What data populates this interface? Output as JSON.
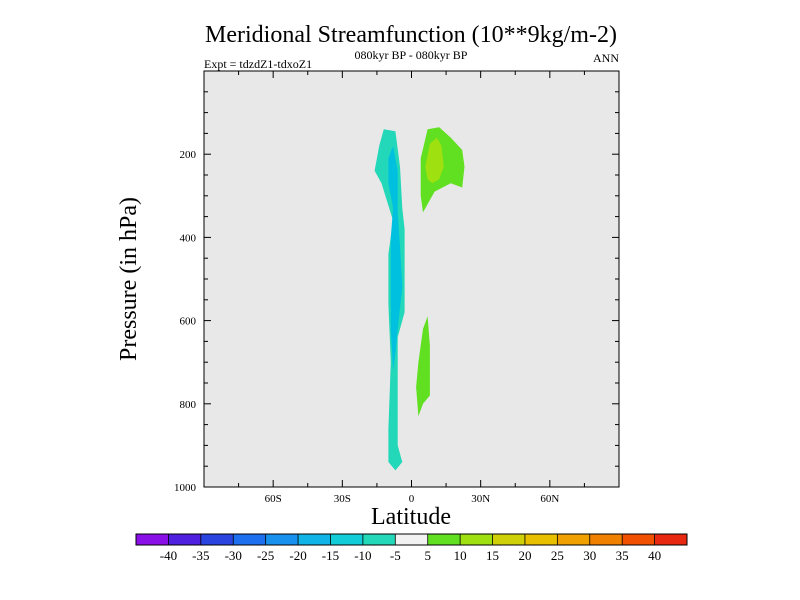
{
  "chart_data": {
    "type": "contour",
    "title": "Meridional Streamfunction (10**9kg/m-2)",
    "subtitle_left": "Expt = tdzdZ1-tdxoZ1",
    "subtitle_center": "080kyr BP - 080kyr BP",
    "subtitle_right": "ANN",
    "xlabel": "Latitude",
    "ylabel": "Pressure (in hPa)",
    "xlim": [
      -90,
      90
    ],
    "ylim": [
      1000,
      0
    ],
    "x_ticks": [
      {
        "value": -60,
        "label": "60S"
      },
      {
        "value": -30,
        "label": "30S"
      },
      {
        "value": 0,
        "label": "0"
      },
      {
        "value": 30,
        "label": "30N"
      },
      {
        "value": 60,
        "label": "60N"
      }
    ],
    "y_ticks": [
      {
        "value": 200,
        "label": "200"
      },
      {
        "value": 400,
        "label": "400"
      },
      {
        "value": 600,
        "label": "600"
      },
      {
        "value": 800,
        "label": "800"
      },
      {
        "value": 1000,
        "label": "1000"
      }
    ],
    "background_color": "#e8e8e8",
    "regions": [
      {
        "name": "negative-cell-outer",
        "level": "-10 to -5",
        "color": "#22d8b8",
        "points": [
          [
            -14,
            180
          ],
          [
            -12,
            140
          ],
          [
            -7,
            145
          ],
          [
            -5,
            230
          ],
          [
            -4,
            330
          ],
          [
            -3,
            380
          ],
          [
            -3,
            520
          ],
          [
            -3,
            580
          ],
          [
            -6,
            640
          ],
          [
            -6,
            900
          ],
          [
            -4,
            940
          ],
          [
            -7,
            960
          ],
          [
            -10,
            940
          ],
          [
            -10,
            860
          ],
          [
            -9,
            700
          ],
          [
            -10,
            560
          ],
          [
            -10,
            440
          ],
          [
            -8,
            360
          ],
          [
            -13,
            270
          ],
          [
            -16,
            240
          ]
        ]
      },
      {
        "name": "negative-cell-inner",
        "level": "-15 to -10",
        "color": "#00c0e0",
        "points": [
          [
            -10,
            210
          ],
          [
            -8,
            180
          ],
          [
            -6,
            240
          ],
          [
            -6,
            340
          ],
          [
            -5,
            420
          ],
          [
            -4,
            520
          ],
          [
            -6,
            620
          ],
          [
            -7,
            680
          ],
          [
            -8,
            720
          ],
          [
            -9,
            620
          ],
          [
            -9,
            500
          ],
          [
            -9,
            400
          ],
          [
            -8,
            330
          ],
          [
            -10,
            270
          ]
        ]
      },
      {
        "name": "positive-upper-outer",
        "level": "5 to 10",
        "color": "#60e020",
        "points": [
          [
            4,
            210
          ],
          [
            7,
            140
          ],
          [
            12,
            135
          ],
          [
            17,
            160
          ],
          [
            22,
            190
          ],
          [
            23,
            230
          ],
          [
            22,
            280
          ],
          [
            17,
            270
          ],
          [
            10,
            290
          ],
          [
            7,
            320
          ],
          [
            5,
            340
          ],
          [
            4,
            300
          ]
        ]
      },
      {
        "name": "positive-upper-inner",
        "level": "10 to 15",
        "color": "#9ee010",
        "points": [
          [
            6,
            230
          ],
          [
            8,
            175
          ],
          [
            11,
            160
          ],
          [
            13,
            180
          ],
          [
            14,
            230
          ],
          [
            12,
            260
          ],
          [
            9,
            270
          ],
          [
            7,
            260
          ]
        ]
      },
      {
        "name": "positive-lower",
        "level": "5 to 10",
        "color": "#60e020",
        "points": [
          [
            3,
            700
          ],
          [
            5,
            620
          ],
          [
            7,
            590
          ],
          [
            8,
            660
          ],
          [
            8,
            780
          ],
          [
            5,
            800
          ],
          [
            3,
            830
          ],
          [
            2,
            760
          ]
        ]
      }
    ],
    "colorbar": {
      "labels": [
        "-40",
        "-35",
        "-30",
        "-25",
        "-20",
        "-15",
        "-10",
        "-5",
        "5",
        "10",
        "15",
        "20",
        "25",
        "30",
        "35",
        "40"
      ],
      "colors": [
        "#8a10e8",
        "#5020e0",
        "#2a44e0",
        "#1e6ef0",
        "#1890ee",
        "#10b4e6",
        "#12ccd8",
        "#22d8b8",
        "#f2f2f2",
        "#60e020",
        "#9ee010",
        "#cfd008",
        "#e8c000",
        "#f0a000",
        "#f08000",
        "#f05000",
        "#e82810"
      ]
    }
  }
}
